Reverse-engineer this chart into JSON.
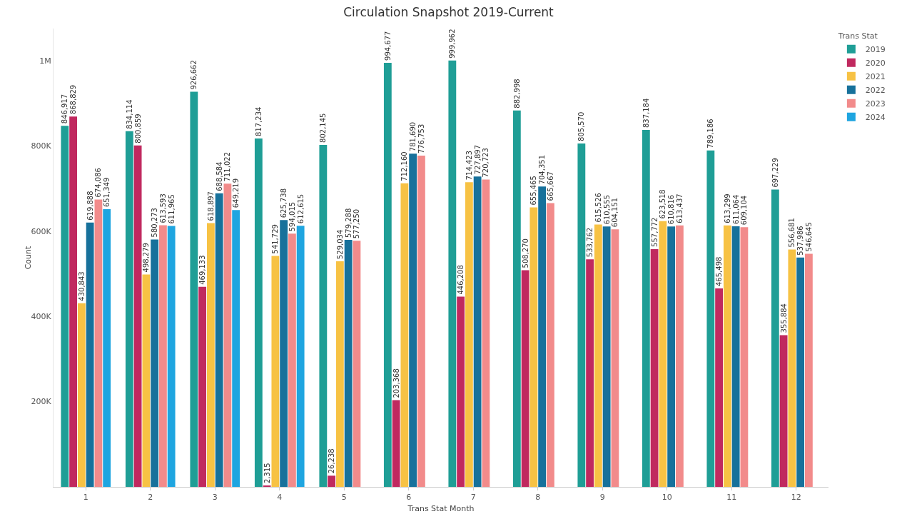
{
  "chart_data": {
    "type": "bar",
    "title": "Circulation Snapshot 2019-Current",
    "xlabel": "Trans Stat Month",
    "ylabel": "Count",
    "legend_title": "Trans Stat",
    "categories": [
      "1",
      "2",
      "3",
      "4",
      "5",
      "6",
      "7",
      "8",
      "9",
      "10",
      "11",
      "12"
    ],
    "series": [
      {
        "name": "2019",
        "color": "#1f9e96",
        "values": [
          846917,
          834114,
          926662,
          817234,
          802145,
          994677,
          999962,
          882998,
          805570,
          837184,
          789186,
          697229
        ],
        "value_labels": [
          "846,917",
          "834,114",
          "926,662",
          "817,234",
          "802,145",
          "994,677",
          "999,962",
          "882,998",
          "805,570",
          "837,184",
          "789,186",
          "697,229"
        ]
      },
      {
        "name": "2020",
        "color": "#c0295f",
        "values": [
          868829,
          800859,
          469133,
          2315,
          26238,
          203368,
          446208,
          508270,
          533762,
          557772,
          465498,
          355884
        ],
        "value_labels": [
          "868,829",
          "800,859",
          "469,133",
          "2,315",
          "26,238",
          "203,368",
          "446,208",
          "508,270",
          "533,762",
          "557,772",
          "465,498",
          "355,884"
        ]
      },
      {
        "name": "2021",
        "color": "#f7c244",
        "values": [
          430843,
          498279,
          618897,
          541729,
          529034,
          712160,
          714423,
          655465,
          615526,
          623518,
          613299,
          556681
        ],
        "value_labels": [
          "430,843",
          "498,279",
          "618,897",
          "541,729",
          "529,034",
          "712,160",
          "714,423",
          "655,465",
          "615,526",
          "623,518",
          "613,299",
          "556,681"
        ]
      },
      {
        "name": "2022",
        "color": "#17719b",
        "values": [
          619888,
          580273,
          688584,
          625738,
          579288,
          781690,
          727897,
          704351,
          610555,
          610816,
          611064,
          537986
        ],
        "value_labels": [
          "619,888",
          "580,273",
          "688,584",
          "625,738",
          "579,288",
          "781,690",
          "727,897",
          "704,351",
          "610,555",
          "610,816",
          "611,064",
          "537,986"
        ]
      },
      {
        "name": "2023",
        "color": "#f28b8b",
        "values": [
          674086,
          613593,
          711022,
          594015,
          577250,
          776753,
          720723,
          665667,
          604151,
          613437,
          609104,
          546645
        ],
        "value_labels": [
          "674,086",
          "613,593",
          "711,022",
          "594,015",
          "577,250",
          "776,753",
          "720,723",
          "665,667",
          "604,151",
          "613,437",
          "609,104",
          "546,645"
        ]
      },
      {
        "name": "2024",
        "color": "#1fa5e0",
        "values": [
          651349,
          611965,
          649219,
          612615,
          null,
          null,
          null,
          null,
          null,
          null,
          null,
          null
        ],
        "value_labels": [
          "651,349",
          "611,965",
          "649,219",
          "612,615",
          null,
          null,
          null,
          null,
          null,
          null,
          null,
          null
        ]
      }
    ],
    "ylim": [
      0,
      1075000
    ],
    "yticks": [
      {
        "value": 200000,
        "label": "200K"
      },
      {
        "value": 400000,
        "label": "400K"
      },
      {
        "value": 600000,
        "label": "600K"
      },
      {
        "value": 800000,
        "label": "800K"
      },
      {
        "value": 1000000,
        "label": "1M"
      }
    ],
    "grid": false,
    "legend": "top right"
  }
}
